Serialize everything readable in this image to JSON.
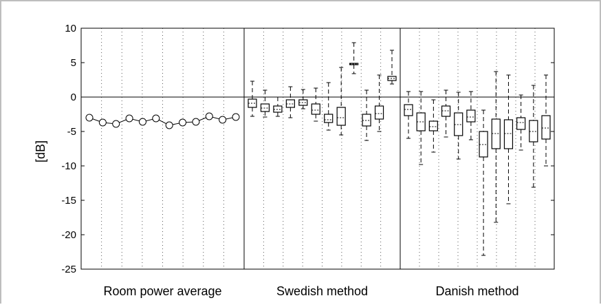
{
  "chart_data": {
    "type": "box",
    "ylabel": "[dB]",
    "ylim": [
      -25,
      10
    ],
    "yticks": [
      10,
      5,
      0,
      -5,
      -10,
      -15,
      -20,
      -25
    ],
    "grid": "vertical dotted",
    "panels": [
      {
        "name": "Room power average",
        "kind": "line",
        "values": [
          -3.0,
          -3.7,
          -3.9,
          -3.1,
          -3.6,
          -3.1,
          -4.1,
          -3.7,
          -3.6,
          -2.8,
          -3.3,
          -2.9
        ]
      },
      {
        "name": "Swedish method",
        "kind": "boxplot",
        "boxes": [
          {
            "min": -2.8,
            "q1": -1.5,
            "median": -0.9,
            "q3": -0.3,
            "max": 2.3
          },
          {
            "min": -2.9,
            "q1": -2.1,
            "median": -1.6,
            "q3": -1.0,
            "max": 1.0
          },
          {
            "min": -2.8,
            "q1": -2.2,
            "median": -1.8,
            "q3": -1.3,
            "max": 0.0
          },
          {
            "min": -3.0,
            "q1": -1.5,
            "median": -1.0,
            "q3": -0.4,
            "max": 1.5
          },
          {
            "min": -1.7,
            "q1": -1.2,
            "median": -0.8,
            "q3": -0.4,
            "max": 1.1
          },
          {
            "min": -3.5,
            "q1": -2.5,
            "median": -1.9,
            "q3": -1.0,
            "max": 1.3
          },
          {
            "min": -4.8,
            "q1": -3.7,
            "median": -3.3,
            "q3": -2.5,
            "max": 2.1
          },
          {
            "min": -5.5,
            "q1": -4.1,
            "median": -3.0,
            "q3": -1.5,
            "max": 4.3
          },
          {
            "min": 3.4,
            "q1": 4.7,
            "median": 4.8,
            "q3": 4.9,
            "max": 7.9
          },
          {
            "min": -6.3,
            "q1": -4.2,
            "median": -3.4,
            "q3": -2.5,
            "max": 1.0
          },
          {
            "min": -5.0,
            "q1": -3.2,
            "median": -2.4,
            "q3": -1.3,
            "max": 3.2
          },
          {
            "min": 1.9,
            "q1": 2.4,
            "median": 2.7,
            "q3": 3.0,
            "max": 6.8
          }
        ]
      },
      {
        "name": "Danish method",
        "kind": "boxplot",
        "boxes": [
          {
            "min": -6.0,
            "q1": -2.7,
            "median": -1.8,
            "q3": -1.1,
            "max": 0.8
          },
          {
            "min": -9.8,
            "q1": -4.9,
            "median": -3.6,
            "q3": -2.3,
            "max": 0.8
          },
          {
            "min": -8.0,
            "q1": -4.9,
            "median": -4.3,
            "q3": -3.5,
            "max": -0.4
          },
          {
            "min": -5.8,
            "q1": -2.8,
            "median": -2.0,
            "q3": -1.3,
            "max": 1.0
          },
          {
            "min": -9.0,
            "q1": -5.6,
            "median": -4.0,
            "q3": -2.3,
            "max": 0.7
          },
          {
            "min": -6.2,
            "q1": -3.6,
            "median": -2.9,
            "q3": -1.9,
            "max": 0.8
          },
          {
            "min": -23.0,
            "q1": -8.7,
            "median": -6.9,
            "q3": -5.0,
            "max": -1.9
          },
          {
            "min": -18.2,
            "q1": -7.5,
            "median": -5.3,
            "q3": -3.2,
            "max": 3.7
          },
          {
            "min": -15.5,
            "q1": -7.5,
            "median": -5.3,
            "q3": -3.3,
            "max": 3.2
          },
          {
            "min": -7.7,
            "q1": -4.7,
            "median": -3.7,
            "q3": -3.0,
            "max": 0.3
          },
          {
            "min": -13.1,
            "q1": -6.5,
            "median": -5.0,
            "q3": -3.4,
            "max": 1.7
          },
          {
            "min": -10.0,
            "q1": -6.1,
            "median": -4.5,
            "q3": -2.7,
            "max": 3.2
          }
        ]
      }
    ]
  }
}
